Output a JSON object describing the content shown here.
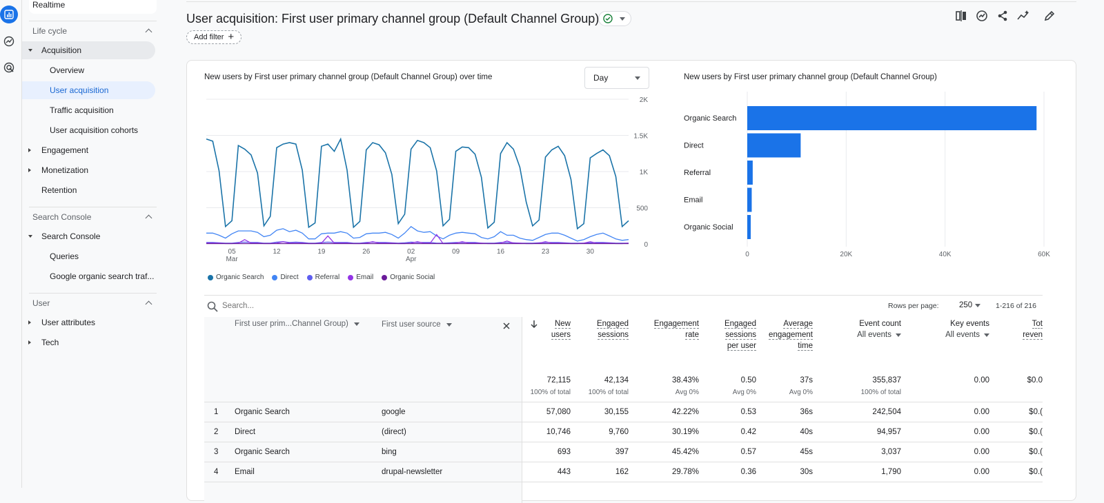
{
  "sidebar": {
    "realtime": "Realtime",
    "lifecycle": "Life cycle",
    "acquisition": "Acquisition",
    "overview": "Overview",
    "user_acquisition": "User acquisition",
    "traffic_acquisition": "Traffic acquisition",
    "user_acquisition_cohorts": "User acquisition cohorts",
    "engagement": "Engagement",
    "monetization": "Monetization",
    "retention": "Retention",
    "search_console_section": "Search Console",
    "search_console": "Search Console",
    "queries": "Queries",
    "google_organic": "Google organic search traf...",
    "user_section": "User",
    "user_attributes": "User attributes",
    "tech": "Tech"
  },
  "header": {
    "title": "User acquisition: First user primary channel group (Default Channel Group)",
    "add_filter": "Add filter"
  },
  "line_chart": {
    "title": "New users by First user primary channel group (Default Channel Group) over time",
    "granularity": "Day"
  },
  "bar_chart": {
    "title": "New users by First user primary channel group (Default Channel Group)"
  },
  "chart_data": [
    {
      "type": "line",
      "x_tick_labels": [
        "05",
        "12",
        "19",
        "26",
        "02",
        "09",
        "16",
        "23",
        "30"
      ],
      "x_month_labels": [
        {
          "at": "05",
          "label": "Mar"
        },
        {
          "at": "02",
          "label": "Apr"
        }
      ],
      "y_tick_labels": [
        "0",
        "500",
        "1K",
        "1.5K",
        "2K"
      ],
      "ylim": [
        0,
        2000
      ],
      "series": [
        {
          "name": "Organic Search",
          "color": "#1a73a8",
          "values": [
            1450,
            1420,
            1010,
            240,
            320,
            1360,
            1310,
            1230,
            980,
            250,
            380,
            1330,
            1380,
            1400,
            1380,
            1020,
            230,
            290,
            1350,
            1380,
            1280,
            1450,
            1020,
            230,
            310,
            1300,
            1400,
            1370,
            1260,
            960,
            280,
            410,
            1310,
            1430,
            1400,
            1330,
            1010,
            250,
            340,
            1280,
            1340,
            1330,
            1240,
            920,
            220,
            300,
            1250,
            1400,
            1310,
            1060,
            580,
            250,
            330,
            1200,
            1300,
            1350,
            1220,
            890,
            210,
            280,
            1190,
            1250,
            1300,
            1220,
            930,
            240,
            320
          ]
        },
        {
          "name": "Direct",
          "color": "#4285f4",
          "values": [
            150,
            150,
            120,
            80,
            140,
            180,
            180,
            180,
            160,
            100,
            120,
            190,
            210,
            170,
            190,
            150,
            70,
            70,
            140,
            150,
            150,
            170,
            150,
            80,
            90,
            140,
            150,
            150,
            160,
            130,
            80,
            150,
            240,
            180,
            160,
            170,
            110,
            70,
            120,
            150,
            160,
            150,
            140,
            90,
            70,
            100,
            170,
            120,
            120,
            80,
            60,
            50,
            90,
            130,
            150,
            150,
            120,
            80,
            40,
            60,
            100,
            130,
            150,
            110,
            70,
            50,
            60
          ]
        },
        {
          "name": "Referral",
          "color": "#5e5ef0",
          "values": [
            20,
            20,
            15,
            10,
            10,
            20,
            25,
            20,
            20,
            10,
            10,
            25,
            30,
            20,
            25,
            20,
            10,
            10,
            20,
            25,
            20,
            20,
            20,
            10,
            10,
            20,
            25,
            20,
            20,
            15,
            10,
            15,
            25,
            20,
            20,
            20,
            10,
            10,
            15,
            20,
            20,
            20,
            20,
            10,
            10,
            10,
            20,
            20,
            15,
            10,
            10,
            10,
            15,
            20,
            20,
            20,
            15,
            10,
            10,
            10,
            15,
            20,
            20,
            15,
            10,
            10,
            10
          ]
        },
        {
          "name": "Email",
          "color": "#9334e6",
          "values": [
            10,
            10,
            10,
            5,
            5,
            10,
            60,
            10,
            10,
            5,
            5,
            10,
            30,
            10,
            10,
            10,
            5,
            5,
            10,
            110,
            10,
            10,
            10,
            5,
            5,
            10,
            30,
            10,
            10,
            10,
            5,
            5,
            10,
            30,
            10,
            10,
            130,
            5,
            5,
            10,
            30,
            10,
            10,
            10,
            5,
            5,
            10,
            40,
            10,
            10,
            5,
            5,
            10,
            30,
            10,
            10,
            10,
            5,
            5,
            10,
            30,
            10,
            10,
            10,
            5,
            5,
            10
          ]
        },
        {
          "name": "Organic Social",
          "color": "#6a1b9a",
          "values": [
            5,
            5,
            5,
            5,
            5,
            5,
            5,
            5,
            5,
            5,
            5,
            5,
            5,
            5,
            5,
            5,
            5,
            5,
            5,
            5,
            5,
            5,
            5,
            5,
            5,
            5,
            5,
            5,
            5,
            5,
            5,
            5,
            5,
            5,
            5,
            5,
            5,
            5,
            5,
            5,
            5,
            5,
            5,
            5,
            5,
            5,
            5,
            5,
            5,
            5,
            5,
            5,
            5,
            5,
            5,
            5,
            5,
            5,
            5,
            5,
            5,
            5,
            5,
            5,
            5,
            5,
            5
          ]
        }
      ],
      "legend_placement": "bottom-left"
    },
    {
      "type": "bar",
      "orientation": "horizontal",
      "categories": [
        "Organic Search",
        "Direct",
        "Referral",
        "Email",
        "Organic Social"
      ],
      "values": [
        58500,
        10800,
        1100,
        900,
        700
      ],
      "x_tick_labels": [
        "0",
        "20K",
        "40K",
        "60K"
      ],
      "xlim": [
        0,
        60000
      ],
      "color": "#1a73e8"
    }
  ],
  "table": {
    "search_placeholder": "Search...",
    "rows_per_page_label": "Rows per page:",
    "rows_per_page": "250",
    "pagination": "1-216 of 216",
    "dim1_header": "First user prim...Channel Group)",
    "dim2_header": "First user source",
    "columns": [
      {
        "l1": "New",
        "l2": "users",
        "l3": ""
      },
      {
        "l1": "Engaged",
        "l2": "sessions",
        "l3": ""
      },
      {
        "l1": "Engagement",
        "l2": "rate",
        "l3": ""
      },
      {
        "l1": "Engaged",
        "l2": "sessions",
        "l3": "per user"
      },
      {
        "l1": "Average",
        "l2": "engagement",
        "l3": "time"
      },
      {
        "l1": "Event count",
        "l2": "All events",
        "l3": ""
      },
      {
        "l1": "Key events",
        "l2": "All events",
        "l3": ""
      },
      {
        "l1": "Tot",
        "l2": "reven",
        "l3": ""
      }
    ],
    "totals": [
      {
        "value": "72,115",
        "sub": "100% of total"
      },
      {
        "value": "42,134",
        "sub": "100% of total"
      },
      {
        "value": "38.43%",
        "sub": "Avg 0%"
      },
      {
        "value": "0.50",
        "sub": "Avg 0%"
      },
      {
        "value": "37s",
        "sub": "Avg 0%"
      },
      {
        "value": "355,837",
        "sub": "100% of total"
      },
      {
        "value": "0.00",
        "sub": ""
      },
      {
        "value": "$0.0",
        "sub": ""
      }
    ],
    "rows": [
      {
        "n": "1",
        "channel": "Organic Search",
        "source": "google",
        "cells": [
          "57,080",
          "30,155",
          "42.22%",
          "0.53",
          "36s",
          "242,504",
          "0.00",
          "$0.("
        ]
      },
      {
        "n": "2",
        "channel": "Direct",
        "source": "(direct)",
        "cells": [
          "10,746",
          "9,760",
          "30.19%",
          "0.42",
          "40s",
          "94,957",
          "0.00",
          "$0.("
        ]
      },
      {
        "n": "3",
        "channel": "Organic Search",
        "source": "bing",
        "cells": [
          "693",
          "397",
          "45.42%",
          "0.57",
          "45s",
          "3,037",
          "0.00",
          "$0.("
        ]
      },
      {
        "n": "4",
        "channel": "Email",
        "source": "drupal-newsletter",
        "cells": [
          "443",
          "162",
          "29.78%",
          "0.36",
          "30s",
          "1,790",
          "0.00",
          "$0.("
        ]
      }
    ]
  }
}
